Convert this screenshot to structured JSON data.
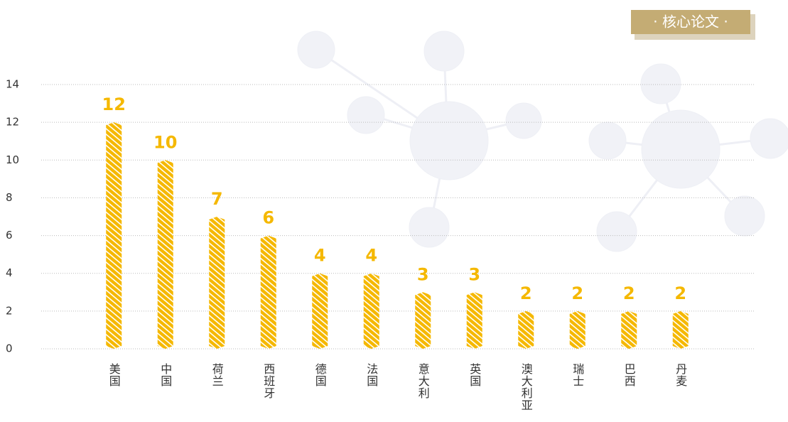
{
  "badge": "· 核心论文 ·",
  "chart_data": {
    "type": "bar",
    "categories": [
      "美国",
      "中国",
      "荷兰",
      "西班牙",
      "德国",
      "法国",
      "意大利",
      "英国",
      "澳大利亚",
      "瑞士",
      "巴西",
      "丹麦"
    ],
    "values": [
      12,
      10,
      7,
      6,
      4,
      4,
      3,
      3,
      2,
      2,
      2,
      2
    ],
    "color": "#f5b800",
    "ylim": [
      0,
      14
    ],
    "yticks": [
      0,
      2,
      4,
      6,
      8,
      10,
      12,
      14
    ],
    "grid": true
  }
}
